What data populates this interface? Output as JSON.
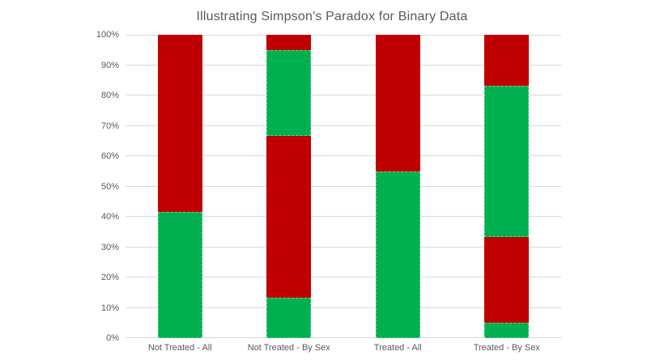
{
  "chart_data": {
    "type": "bar",
    "subtype": "100-percent-stacked-column",
    "title": "Illustrating Simpson's Paradox for Binary Data",
    "categories": [
      "Not Treated - All",
      "Not Treated - By Sex",
      "Treated - All",
      "Treated - By Sex"
    ],
    "y_ticks": [
      "0%",
      "10%",
      "20%",
      "30%",
      "40%",
      "50%",
      "60%",
      "70%",
      "80%",
      "90%",
      "100%"
    ],
    "ylim": [
      0,
      100
    ],
    "grid": true,
    "legend": false,
    "colors": {
      "green": "#00B050",
      "red": "#C00000",
      "gridline": "#D9D9D9",
      "text": "#595959"
    },
    "stacks": [
      {
        "category": "Not Treated - All",
        "segments": [
          {
            "color": "green",
            "value": 41.67
          },
          {
            "color": "red",
            "value": 58.33
          }
        ]
      },
      {
        "category": "Not Treated - By Sex",
        "segments": [
          {
            "color": "green",
            "value": 13.33
          },
          {
            "color": "red",
            "value": 53.34
          },
          {
            "color": "green",
            "value": 28.33
          },
          {
            "color": "red",
            "value": 5.0
          }
        ]
      },
      {
        "category": "Treated - All",
        "segments": [
          {
            "color": "green",
            "value": 55.0
          },
          {
            "color": "red",
            "value": 45.0
          }
        ]
      },
      {
        "category": "Treated - By Sex",
        "segments": [
          {
            "color": "green",
            "value": 5.0
          },
          {
            "color": "red",
            "value": 28.33
          },
          {
            "color": "green",
            "value": 50.0
          },
          {
            "color": "red",
            "value": 16.67
          }
        ]
      }
    ]
  }
}
